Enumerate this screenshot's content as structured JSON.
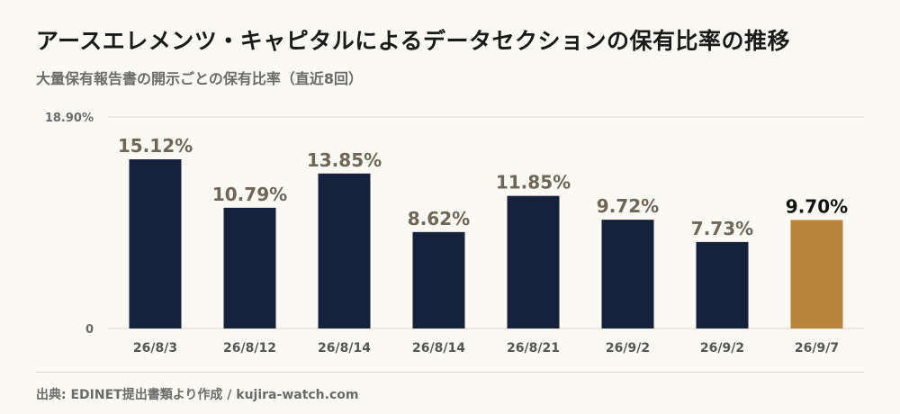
{
  "title": "アースエレメンツ・キャピタルによるデータセクションの保有比率の推移",
  "subtitle": "大量保有報告書の開示ごとの保有比率（直近8回）",
  "source": "出典: EDINET提出書類より作成 / kujira-watch.com",
  "colors": {
    "bar": "#16213b",
    "highlight": "#b8853a",
    "grid": "#ddd7c9",
    "background": "#fbf9f4"
  },
  "chart_data": {
    "type": "bar",
    "categories": [
      "26/8/3",
      "26/8/12",
      "26/8/14",
      "26/8/14",
      "26/8/21",
      "26/9/2",
      "26/9/2",
      "26/9/7"
    ],
    "values": [
      15.12,
      10.79,
      13.85,
      8.62,
      11.85,
      9.72,
      7.73,
      9.7
    ],
    "value_labels": [
      "15.12%",
      "10.79%",
      "13.85%",
      "8.62%",
      "11.85%",
      "9.72%",
      "7.73%",
      "9.70%"
    ],
    "highlight_index": 7,
    "ylim": [
      0,
      18.9
    ],
    "y_ticks": [
      {
        "value": 18.9,
        "label": "18.90%"
      },
      {
        "value": 0,
        "label": "0"
      }
    ],
    "grid": true,
    "legend": "none"
  }
}
